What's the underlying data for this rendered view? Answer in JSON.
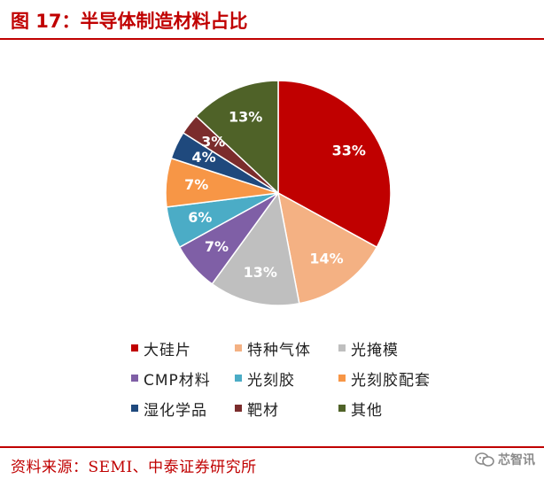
{
  "figure_title": "图 17：半导体制造材料占比",
  "source": "资料来源：SEMI、中泰证券研究所",
  "watermark": "芯智讯",
  "chart_data": {
    "type": "pie",
    "slices": [
      {
        "name": "大硅片",
        "value": 33,
        "label": "33%",
        "color": "#c00000"
      },
      {
        "name": "特种气体",
        "value": 14,
        "label": "14%",
        "color": "#f4b183"
      },
      {
        "name": "光掩模",
        "value": 13,
        "label": "13%",
        "color": "#bfbfbf"
      },
      {
        "name": "CMP材料",
        "value": 7,
        "label": "7%",
        "color": "#7f5fa6"
      },
      {
        "name": "光刻胶",
        "value": 6,
        "label": "6%",
        "color": "#4bacc6"
      },
      {
        "name": "光刻胶配套",
        "value": 7,
        "label": "7%",
        "color": "#f79646"
      },
      {
        "name": "湿化学品",
        "value": 4,
        "label": "4%",
        "color": "#1f497d"
      },
      {
        "name": "靶材",
        "value": 3,
        "label": "3%",
        "color": "#7b2c2c"
      },
      {
        "name": "其他",
        "value": 13,
        "label": "13%",
        "color": "#4f6228"
      }
    ],
    "legend_placement": "bottom"
  }
}
